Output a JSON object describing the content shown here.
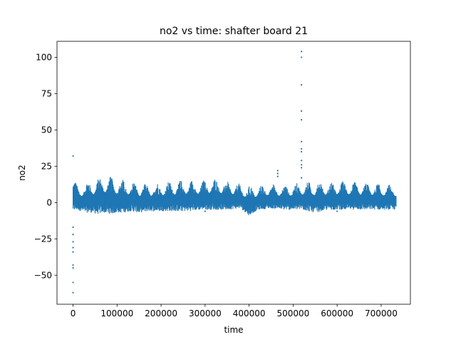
{
  "chart_data": {
    "type": "scatter",
    "title": "no2 vs time: shafter board 21",
    "xlabel": "time",
    "ylabel": "no2",
    "xlim": [
      -36500,
      766500
    ],
    "ylim": [
      -70,
      111
    ],
    "xticks": [
      0,
      100000,
      200000,
      300000,
      400000,
      500000,
      600000,
      700000
    ],
    "xtick_labels": [
      "0",
      "100000",
      "200000",
      "300000",
      "400000",
      "500000",
      "600000",
      "700000"
    ],
    "yticks": [
      -50,
      -25,
      0,
      25,
      50,
      75,
      100
    ],
    "ytick_labels": [
      "−50",
      "−25",
      "0",
      "25",
      "50",
      "75",
      "100"
    ],
    "grid": false,
    "legend": "none",
    "color": "#1f77b4",
    "series": [
      {
        "band": {
          "x": [
            0,
            10000,
            25000,
            40000,
            55000,
            70000,
            85000,
            100000,
            115000,
            130000,
            150000,
            170000,
            200000,
            230000,
            260000,
            290000,
            320000,
            350000,
            380000,
            400000,
            420000,
            450000,
            480000,
            500000,
            520000,
            550000,
            580000,
            610000,
            640000,
            670000,
            700000,
            734000
          ],
          "low": [
            -6,
            -5,
            -7,
            -7,
            -8,
            -7,
            -8,
            -7,
            -7,
            -6,
            -7,
            -6,
            -6,
            -6,
            -6,
            -5,
            -5,
            -5,
            -4,
            -9,
            -5,
            -4,
            -5,
            -5,
            -5,
            -7,
            -5,
            -5,
            -5,
            -5,
            -5,
            -5
          ],
          "high": [
            18,
            12,
            14,
            16,
            17,
            19,
            18,
            17,
            16,
            15,
            14,
            13,
            14,
            15,
            16,
            15,
            17,
            15,
            13,
            12,
            12,
            13,
            12,
            13,
            14,
            15,
            14,
            15,
            14,
            14,
            13,
            12
          ]
        },
        "points": [
          {
            "x": 0,
            "y": 32
          },
          {
            "x": 0,
            "y": -17
          },
          {
            "x": 0,
            "y": -22
          },
          {
            "x": 0,
            "y": -27
          },
          {
            "x": 0,
            "y": -31
          },
          {
            "x": 0,
            "y": -34
          },
          {
            "x": 0,
            "y": -43
          },
          {
            "x": 0,
            "y": -45
          },
          {
            "x": 0,
            "y": -55
          },
          {
            "x": 0,
            "y": -62
          },
          {
            "x": 465000,
            "y": 22
          },
          {
            "x": 465000,
            "y": 20
          },
          {
            "x": 465000,
            "y": 18
          },
          {
            "x": 519000,
            "y": 104
          },
          {
            "x": 519000,
            "y": 100
          },
          {
            "x": 519000,
            "y": 81
          },
          {
            "x": 519000,
            "y": 63
          },
          {
            "x": 519000,
            "y": 57
          },
          {
            "x": 519000,
            "y": 42
          },
          {
            "x": 519000,
            "y": 37
          },
          {
            "x": 519000,
            "y": 35
          },
          {
            "x": 519000,
            "y": 29
          },
          {
            "x": 519000,
            "y": 26
          },
          {
            "x": 519000,
            "y": 24
          },
          {
            "x": 519000,
            "y": 17
          },
          {
            "x": 150000,
            "y": -6
          },
          {
            "x": 300000,
            "y": -6
          },
          {
            "x": 400000,
            "y": -7
          },
          {
            "x": 600000,
            "y": -6
          }
        ]
      }
    ]
  }
}
